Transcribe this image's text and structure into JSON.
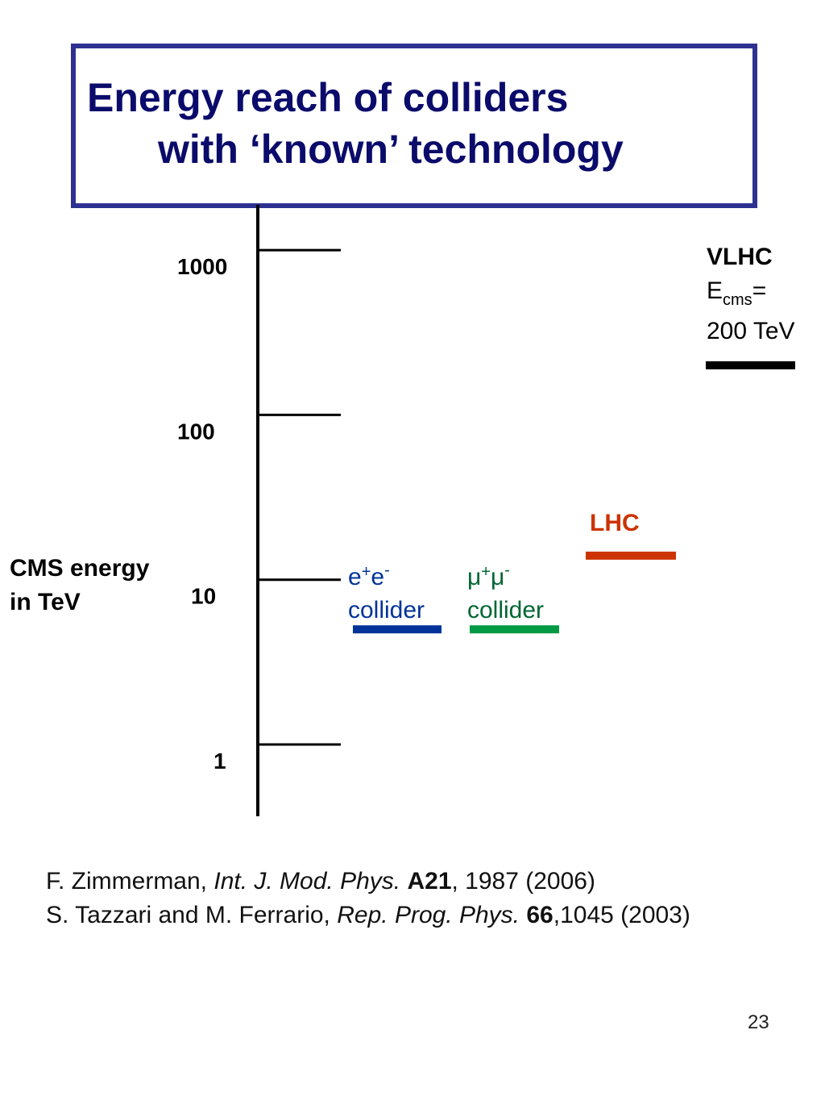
{
  "title": {
    "line1": "Energy reach of colliders",
    "line2": "with ‘known’ technology"
  },
  "colors": {
    "title_border": "#2e3192",
    "title_text": "#0b0b6b",
    "ee": "#003399",
    "mumu": "#009944",
    "lhc": "#cc3300",
    "vlhc": "#000000"
  },
  "chart_data": {
    "type": "bar",
    "scale": "log",
    "ylabel": "CMS energy in TeV",
    "ylim": [
      0.35,
      2000
    ],
    "ticks": [
      {
        "value": 1,
        "label": "1"
      },
      {
        "value": 10,
        "label": "10"
      },
      {
        "value": 100,
        "label": "100"
      },
      {
        "value": 1000,
        "label": "1000"
      }
    ],
    "series": [
      {
        "id": "ee",
        "name_main": "e",
        "sup1": "+",
        "name_mid": "e",
        "sup2": "-",
        "name_line2": "collider",
        "value": 5,
        "color": "#003399"
      },
      {
        "id": "mumu",
        "name_main": "μ",
        "sup1": "+",
        "name_mid": "μ",
        "sup2": "-",
        "name_line2": "collider",
        "value": 5,
        "color": "#009944"
      },
      {
        "id": "lhc",
        "name_main": "LHC",
        "value": 14,
        "color": "#cc3300"
      },
      {
        "id": "vlhc",
        "name_main": "VLHC",
        "energy_label": "E",
        "energy_sub": "cms",
        "energy_eq": "=",
        "energy_value": "200 TeV",
        "value": 200,
        "color": "#000000"
      }
    ]
  },
  "references": {
    "ref1": {
      "author": "F. Zimmerman, ",
      "journal": "Int. J. Mod. Phys.",
      "volume": "A21",
      "rest": ", 1987 (2006)"
    },
    "ref2": {
      "author": "S. Tazzari and M. Ferrario, ",
      "journal": "Rep. Prog. Phys.",
      "volume": "66",
      "rest": ",1045 (2003)"
    }
  },
  "page_number": "23"
}
